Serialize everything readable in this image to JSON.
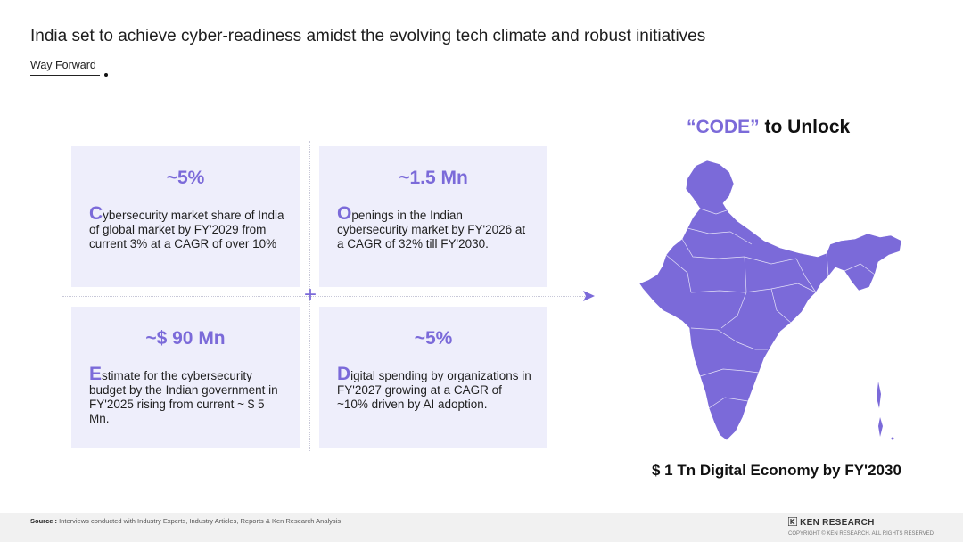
{
  "header": {
    "title": "India set to achieve cyber-readiness amidst the evolving tech climate and robust initiatives",
    "subtitle": "Way Forward"
  },
  "cards": [
    {
      "stat": "~5%",
      "initial": "C",
      "text": "ybersecurity market share of India of global market by FY'2029 from current 3% at a CAGR of over 10%"
    },
    {
      "stat": "~1.5 Mn",
      "initial": "O",
      "text": "penings in the Indian cybersecurity market by FY'2026 at a CAGR of 32% till FY'2030."
    },
    {
      "stat": "~$ 90 Mn",
      "initial": "E",
      "text": "stimate for the cybersecurity budget by the Indian government in FY'2025 rising from current ~ $ 5 Mn."
    },
    {
      "stat": "~5%",
      "initial": "D",
      "text": "igital spending by organizations in FY'2027 growing at a CAGR of ~10% driven by AI adoption."
    }
  ],
  "right_panel": {
    "title_accent": "“CODE”",
    "title_rest": " to Unlock",
    "economy": "$ 1 Tn Digital Economy by FY'2030"
  },
  "footer": {
    "source_label": "Source :",
    "source_text": " Interviews conducted with Industry Experts, Industry Articles, Reports & Ken Research Analysis",
    "brand": "KEN RESEARCH",
    "copyright": "COPYRIGHT © KEN RESEARCH. ALL RIGHTS RESERVED"
  },
  "colors": {
    "accent": "#7b6ad9",
    "card_bg": "#eeeefb",
    "map_fill": "#7b6ad9"
  },
  "icons": {
    "map": "india-map-icon",
    "arrow": "arrow-right-icon",
    "plus": "plus-icon",
    "logo": "ken-research-logo-icon"
  }
}
